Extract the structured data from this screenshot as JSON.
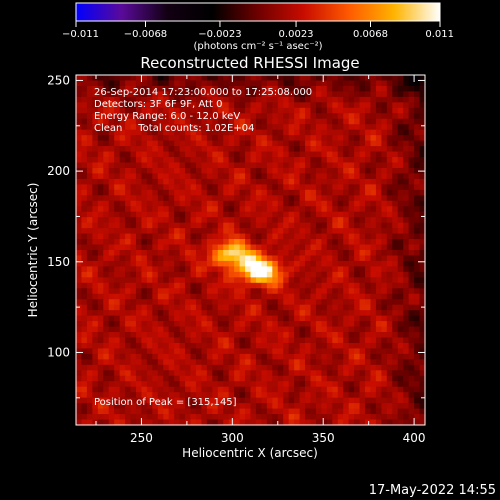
{
  "chart_data": {
    "type": "heatmap",
    "title": "Reconstructed RHESSI Image",
    "xlabel": "Heliocentric X (arcsec)",
    "ylabel": "Heliocentric Y (arcsec)",
    "xlim": [
      214,
      406
    ],
    "ylim": [
      60,
      253
    ],
    "xticks": [
      250,
      300,
      350,
      400
    ],
    "yticks": [
      100,
      150,
      200,
      250
    ],
    "colorbar": {
      "label": "(photons cm⁻² s⁻¹ asec⁻²)",
      "range": [
        -0.011,
        0.011
      ],
      "ticks": [
        {
          "value": -0.011,
          "label": "−0.011"
        },
        {
          "value": -0.0068,
          "label": "−0.0068"
        },
        {
          "value": -0.0023,
          "label": "−0.0023"
        },
        {
          "value": 0.0023,
          "label": "0.0023"
        },
        {
          "value": 0.0068,
          "label": "0.0068"
        },
        {
          "value": 0.011,
          "label": "0.011"
        }
      ],
      "colors": [
        "#0000ff",
        "#5a0a9a",
        "#120012",
        "#000000",
        "#6e0000",
        "#c80c00",
        "#ff5a00",
        "#ffb400",
        "#ffffff"
      ]
    },
    "sources": [
      {
        "x": 300,
        "y": 154,
        "peak": 0.0085
      },
      {
        "x": 315,
        "y": 145,
        "peak": 0.011
      }
    ],
    "peak_position": [
      315,
      145
    ]
  },
  "annotations": {
    "line1": "26-Sep-2014 17:23:00.000 to 17:25:08.000",
    "line2": "Detectors: 3F 6F 9F, Att 0",
    "line3": "Energy Range: 6.0 - 12.0 keV",
    "line4": "Clean     Total counts: 1.02E+04",
    "peak_label": "Position of Peak = [315,145]"
  },
  "footer": {
    "timestamp": "17-May-2022 14:55"
  }
}
